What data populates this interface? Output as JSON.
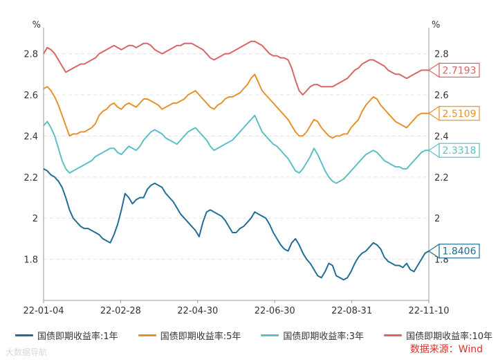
{
  "chart_data": {
    "type": "line",
    "y_unit_left": "%",
    "y_unit_right": "%",
    "ylim": [
      1.6,
      2.92
    ],
    "yticks": [
      1.8,
      2,
      2.2,
      2.4,
      2.6,
      2.8
    ],
    "ytick_labels": [
      "1.8",
      "2",
      "2.2",
      "2.4",
      "2.6",
      "2.8"
    ],
    "xtick_labels": [
      "22-01-04",
      "22-02-28",
      "22-04-30",
      "22-06-30",
      "22-08-31",
      "22-11-10"
    ],
    "grid": true,
    "legend_position": "bottom",
    "series": [
      {
        "name": "国债即期收益率:1年",
        "color": "#1f6e95",
        "end_label": "1.8406",
        "values": [
          2.24,
          2.23,
          2.21,
          2.2,
          2.18,
          2.15,
          2.1,
          2.04,
          2.0,
          1.98,
          1.96,
          1.95,
          1.95,
          1.94,
          1.93,
          1.92,
          1.9,
          1.89,
          1.88,
          1.92,
          1.97,
          2.04,
          2.12,
          2.1,
          2.07,
          2.09,
          2.1,
          2.1,
          2.14,
          2.16,
          2.17,
          2.16,
          2.15,
          2.12,
          2.1,
          2.08,
          2.05,
          2.02,
          2.0,
          1.98,
          1.96,
          1.94,
          1.91,
          1.98,
          2.03,
          2.04,
          2.03,
          2.02,
          2.01,
          1.99,
          1.96,
          1.93,
          1.93,
          1.95,
          1.96,
          1.98,
          2.0,
          2.03,
          2.02,
          2.01,
          2.0,
          1.97,
          1.93,
          1.9,
          1.87,
          1.85,
          1.84,
          1.88,
          1.9,
          1.87,
          1.83,
          1.8,
          1.78,
          1.75,
          1.72,
          1.71,
          1.74,
          1.78,
          1.77,
          1.72,
          1.71,
          1.7,
          1.71,
          1.74,
          1.78,
          1.81,
          1.83,
          1.84,
          1.86,
          1.88,
          1.87,
          1.85,
          1.81,
          1.79,
          1.78,
          1.77,
          1.77,
          1.76,
          1.78,
          1.75,
          1.74,
          1.77,
          1.8,
          1.83,
          1.84
        ]
      },
      {
        "name": "国债即期收益率:5年",
        "color": "#e8912c",
        "end_label": "2.5109",
        "values": [
          2.63,
          2.64,
          2.62,
          2.59,
          2.55,
          2.5,
          2.45,
          2.4,
          2.41,
          2.41,
          2.42,
          2.42,
          2.43,
          2.44,
          2.46,
          2.5,
          2.52,
          2.53,
          2.55,
          2.56,
          2.54,
          2.53,
          2.55,
          2.56,
          2.55,
          2.54,
          2.56,
          2.58,
          2.58,
          2.57,
          2.56,
          2.55,
          2.53,
          2.54,
          2.55,
          2.56,
          2.56,
          2.57,
          2.58,
          2.6,
          2.61,
          2.62,
          2.6,
          2.58,
          2.56,
          2.54,
          2.53,
          2.55,
          2.56,
          2.58,
          2.59,
          2.59,
          2.6,
          2.61,
          2.63,
          2.65,
          2.68,
          2.7,
          2.66,
          2.62,
          2.6,
          2.58,
          2.56,
          2.54,
          2.52,
          2.5,
          2.48,
          2.45,
          2.42,
          2.4,
          2.4,
          2.42,
          2.45,
          2.48,
          2.47,
          2.44,
          2.42,
          2.4,
          2.39,
          2.4,
          2.4,
          2.41,
          2.41,
          2.44,
          2.46,
          2.48,
          2.52,
          2.55,
          2.57,
          2.59,
          2.58,
          2.55,
          2.53,
          2.51,
          2.49,
          2.47,
          2.46,
          2.45,
          2.44,
          2.46,
          2.48,
          2.5,
          2.51,
          2.51,
          2.51
        ]
      },
      {
        "name": "国债即期收益率:3年",
        "color": "#5bc0c4",
        "end_label": "2.3318",
        "values": [
          2.45,
          2.47,
          2.44,
          2.4,
          2.34,
          2.28,
          2.24,
          2.22,
          2.23,
          2.24,
          2.25,
          2.26,
          2.27,
          2.28,
          2.3,
          2.31,
          2.32,
          2.33,
          2.34,
          2.34,
          2.32,
          2.31,
          2.33,
          2.35,
          2.34,
          2.33,
          2.35,
          2.38,
          2.4,
          2.42,
          2.43,
          2.42,
          2.41,
          2.39,
          2.38,
          2.37,
          2.36,
          2.38,
          2.4,
          2.42,
          2.43,
          2.44,
          2.42,
          2.4,
          2.38,
          2.35,
          2.33,
          2.34,
          2.35,
          2.36,
          2.37,
          2.38,
          2.4,
          2.42,
          2.44,
          2.46,
          2.48,
          2.5,
          2.46,
          2.42,
          2.4,
          2.38,
          2.36,
          2.35,
          2.33,
          2.31,
          2.29,
          2.26,
          2.23,
          2.22,
          2.24,
          2.27,
          2.3,
          2.34,
          2.31,
          2.27,
          2.23,
          2.2,
          2.18,
          2.17,
          2.18,
          2.19,
          2.21,
          2.23,
          2.25,
          2.27,
          2.29,
          2.31,
          2.32,
          2.33,
          2.32,
          2.3,
          2.28,
          2.27,
          2.26,
          2.25,
          2.25,
          2.24,
          2.24,
          2.26,
          2.28,
          2.3,
          2.32,
          2.33,
          2.33
        ]
      },
      {
        "name": "国债即期收益率:10年",
        "color": "#d96464",
        "end_label": "2.7193",
        "values": [
          2.8,
          2.83,
          2.82,
          2.8,
          2.77,
          2.74,
          2.71,
          2.72,
          2.73,
          2.74,
          2.75,
          2.75,
          2.76,
          2.77,
          2.78,
          2.8,
          2.81,
          2.82,
          2.83,
          2.84,
          2.83,
          2.82,
          2.83,
          2.84,
          2.84,
          2.83,
          2.84,
          2.85,
          2.85,
          2.84,
          2.82,
          2.81,
          2.8,
          2.81,
          2.82,
          2.83,
          2.84,
          2.84,
          2.85,
          2.85,
          2.85,
          2.84,
          2.83,
          2.82,
          2.8,
          2.78,
          2.77,
          2.78,
          2.79,
          2.8,
          2.8,
          2.81,
          2.82,
          2.83,
          2.84,
          2.85,
          2.86,
          2.86,
          2.85,
          2.84,
          2.82,
          2.8,
          2.79,
          2.79,
          2.78,
          2.78,
          2.77,
          2.73,
          2.67,
          2.62,
          2.6,
          2.62,
          2.64,
          2.65,
          2.65,
          2.64,
          2.64,
          2.64,
          2.64,
          2.65,
          2.66,
          2.67,
          2.68,
          2.7,
          2.72,
          2.73,
          2.75,
          2.76,
          2.77,
          2.77,
          2.76,
          2.75,
          2.74,
          2.72,
          2.71,
          2.7,
          2.7,
          2.69,
          2.68,
          2.69,
          2.7,
          2.71,
          2.72,
          2.72,
          2.72
        ]
      }
    ]
  },
  "source_text": "数据来源：Wind",
  "watermark_text": "大数据导航"
}
